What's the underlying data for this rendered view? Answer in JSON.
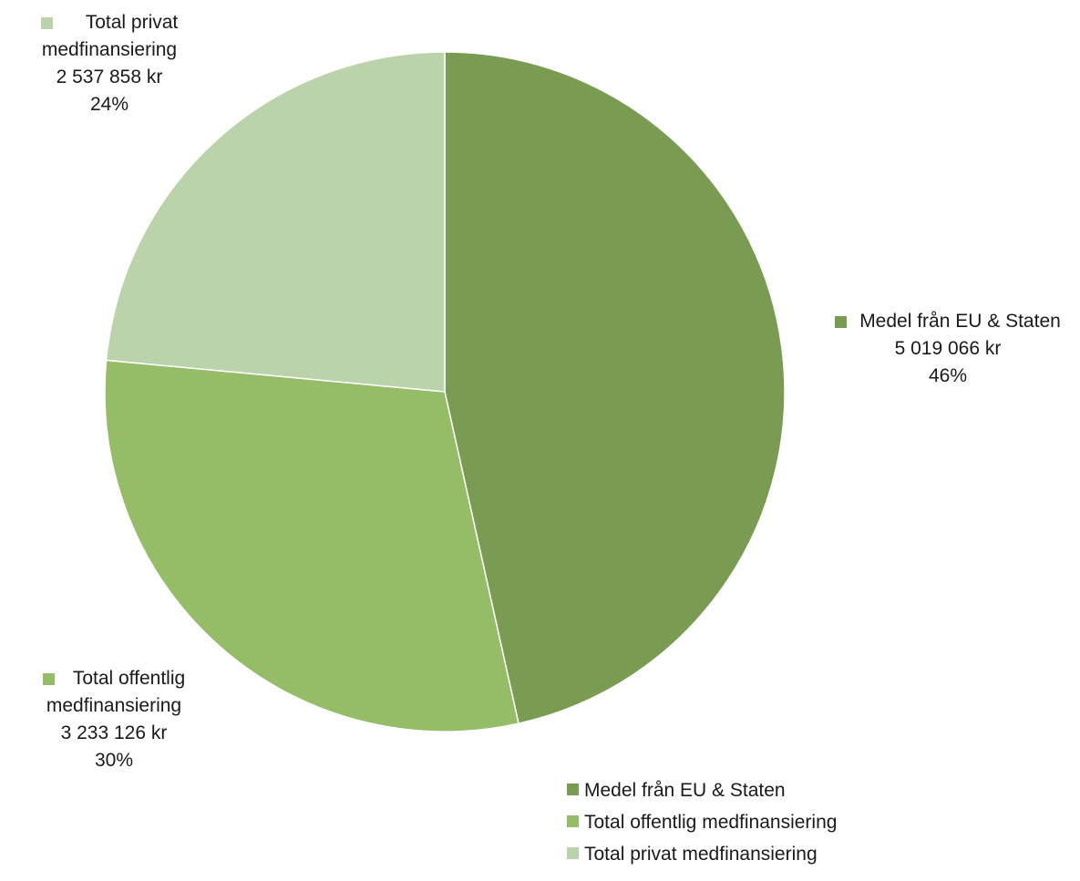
{
  "chart_data": {
    "type": "pie",
    "slices": [
      {
        "name": "Medel från EU & Staten",
        "value": 5019066,
        "value_label": "5 019 066 kr",
        "percent_label": "46%",
        "color": "#7a9b52"
      },
      {
        "name": "Total offentlig medfinansiering",
        "value": 3233126,
        "value_label": "3 233 126 kr",
        "percent_label": "30%",
        "color": "#95bd67"
      },
      {
        "name": "Total privat medfinansiering",
        "value": 2537858,
        "value_label": "2 537 858 kr",
        "percent_label": "24%",
        "color": "#bbd3aa"
      }
    ],
    "data_label_parts": {
      "0": [
        "Medel från EU & Staten"
      ],
      "1": [
        "Total offentlig",
        "medfinansiering"
      ],
      "2": [
        "Total privat",
        "medfinansiering"
      ]
    },
    "legend": {
      "position": "bottom-right",
      "entries": [
        "Medel från EU & Staten",
        "Total offentlig medfinansiering",
        "Total privat medfinansiering"
      ]
    }
  }
}
